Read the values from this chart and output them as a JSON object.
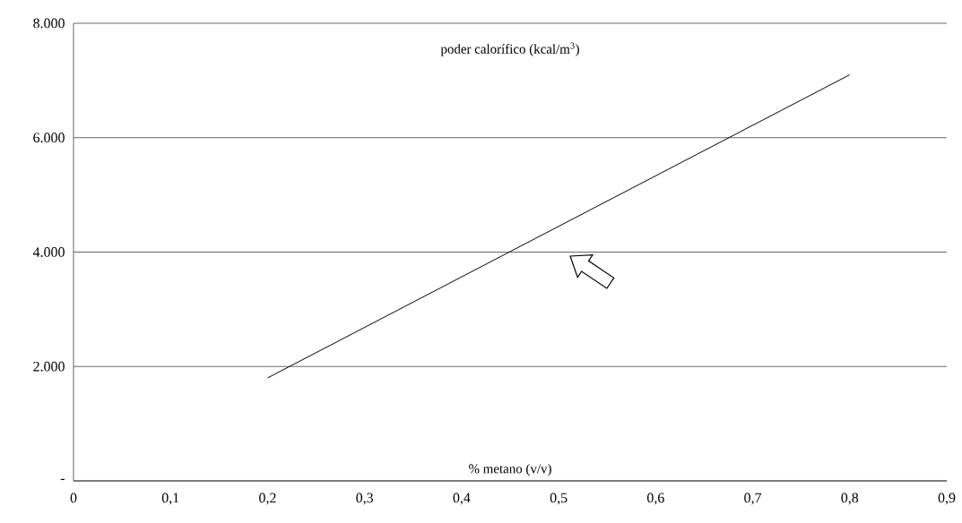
{
  "chart_data": {
    "type": "line",
    "xlabel": "% metano (v/v)",
    "ylabel": "poder calorífico (kcal/m$^{3}$)",
    "x": [
      0.2,
      0.8
    ],
    "series": [
      {
        "color": "#000000",
        "values": [
          1800,
          7100
        ]
      }
    ],
    "xlim": [
      0,
      0.9
    ],
    "ylim": [
      0,
      8000
    ],
    "xticks": [
      0,
      {
        "value": 0.1,
        "label": "0,1"
      },
      {
        "value": 0.2,
        "label": "0,2"
      },
      {
        "value": 0.3,
        "label": "0,3"
      },
      {
        "value": 0.4,
        "label": "0,4"
      },
      {
        "value": 0.5,
        "label": "0,5"
      },
      {
        "value": 0.6,
        "label": "0,6"
      },
      {
        "value": 0.7,
        "label": "0,7"
      },
      {
        "value": 0.8,
        "label": "0,8"
      },
      {
        "value": 0.9,
        "label": "0,9"
      }
    ],
    "yticks": [
      {
        "value": 0,
        "label": "-"
      },
      {
        "value": 2000,
        "label": "2.000"
      },
      {
        "value": 4000,
        "label": "4.000"
      },
      {
        "value": 6000,
        "label": "6.000"
      },
      {
        "value": 8000,
        "label": "8.000"
      }
    ],
    "grid": "y",
    "marker": "none",
    "line_style": "solid"
  }
}
